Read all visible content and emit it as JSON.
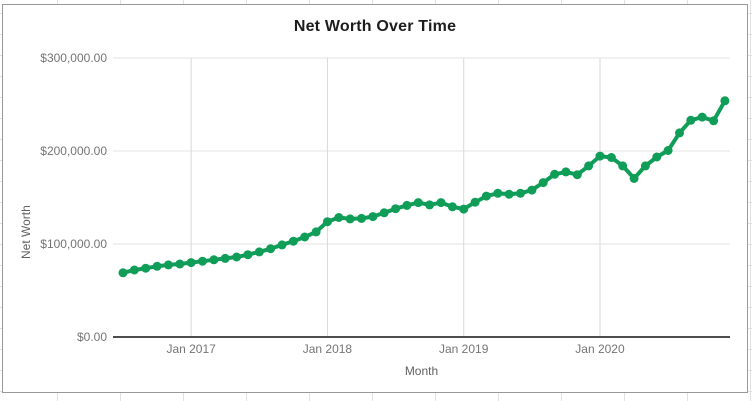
{
  "chart_data": {
    "type": "line",
    "title": "Net Worth Over Time",
    "xlabel": "Month",
    "ylabel": "Net Worth",
    "legend_position": "none",
    "grid": true,
    "ylim": [
      0,
      300000
    ],
    "y_tick_values": [
      0,
      100000,
      200000,
      300000
    ],
    "y_tick_labels": [
      "$0.00",
      "$100,000.00",
      "$200,000.00",
      "$300,000.00"
    ],
    "x_tick_labels": [
      "Jan 2017",
      "Jan 2018",
      "Jan 2019",
      "Jan 2020"
    ],
    "x_tick_month_indices": [
      6,
      18,
      30,
      42
    ],
    "series_name": "Net Worth",
    "series_color": "#0f9d58",
    "x": [
      "Jul 2016",
      "Aug 2016",
      "Sep 2016",
      "Oct 2016",
      "Nov 2016",
      "Dec 2016",
      "Jan 2017",
      "Feb 2017",
      "Mar 2017",
      "Apr 2017",
      "May 2017",
      "Jun 2017",
      "Jul 2017",
      "Aug 2017",
      "Sep 2017",
      "Oct 2017",
      "Nov 2017",
      "Dec 2017",
      "Jan 2018",
      "Feb 2018",
      "Mar 2018",
      "Apr 2018",
      "May 2018",
      "Jun 2018",
      "Jul 2018",
      "Aug 2018",
      "Sep 2018",
      "Oct 2018",
      "Nov 2018",
      "Dec 2018",
      "Jan 2019",
      "Feb 2019",
      "Mar 2019",
      "Apr 2019",
      "May 2019",
      "Jun 2019",
      "Jul 2019",
      "Aug 2019",
      "Sep 2019",
      "Oct 2019",
      "Nov 2019",
      "Dec 2019",
      "Jan 2020",
      "Feb 2020",
      "Mar 2020",
      "Apr 2020",
      "May 2020",
      "Jun 2020",
      "Jul 2020",
      "Aug 2020",
      "Sep 2020",
      "Oct 2020",
      "Nov 2020",
      "Dec 2020"
    ],
    "values": [
      69000,
      72000,
      74000,
      76000,
      77500,
      78500,
      80000,
      81500,
      83000,
      84500,
      86000,
      88500,
      91500,
      95000,
      99000,
      103000,
      107500,
      113000,
      124000,
      128500,
      127000,
      127500,
      129500,
      133500,
      138000,
      141500,
      144500,
      142000,
      144500,
      140000,
      137500,
      145000,
      151500,
      154500,
      153500,
      154500,
      158000,
      166000,
      175000,
      177500,
      174500,
      184000,
      194500,
      193000,
      184000,
      170500,
      184000,
      193500,
      200500,
      219500,
      233000,
      236500,
      232500,
      254000
    ]
  },
  "colors": {
    "series_green": "#0f9d58",
    "h_gridline": "#e3e3e3",
    "v_gridline": "#d9d9d9",
    "axis_baseline": "#4d4d4d",
    "tick_text": "#757575",
    "axis_title_text": "#616161",
    "chart_border": "#999999",
    "sheet_gridline": "#e1e1e1"
  }
}
